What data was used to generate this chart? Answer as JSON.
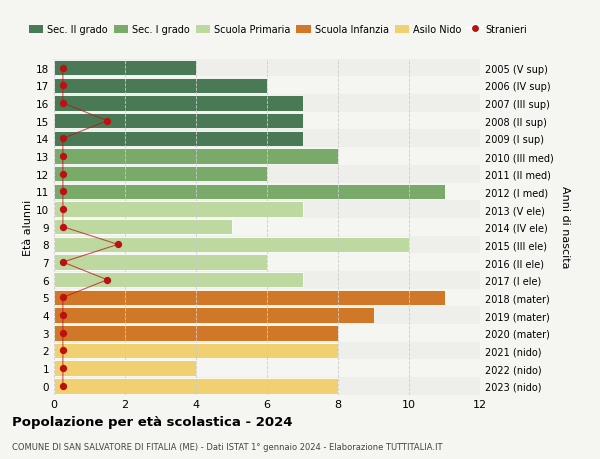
{
  "ages": [
    18,
    17,
    16,
    15,
    14,
    13,
    12,
    11,
    10,
    9,
    8,
    7,
    6,
    5,
    4,
    3,
    2,
    1,
    0
  ],
  "right_labels": [
    "2005 (V sup)",
    "2006 (IV sup)",
    "2007 (III sup)",
    "2008 (II sup)",
    "2009 (I sup)",
    "2010 (III med)",
    "2011 (II med)",
    "2012 (I med)",
    "2013 (V ele)",
    "2014 (IV ele)",
    "2015 (III ele)",
    "2016 (II ele)",
    "2017 (I ele)",
    "2018 (mater)",
    "2019 (mater)",
    "2020 (mater)",
    "2021 (nido)",
    "2022 (nido)",
    "2023 (nido)"
  ],
  "bar_values": [
    4,
    6,
    7,
    7,
    7,
    8,
    6,
    11,
    7,
    5,
    10,
    6,
    7,
    11,
    9,
    8,
    8,
    4,
    8
  ],
  "bar_colors": [
    "#4a7a55",
    "#4a7a55",
    "#4a7a55",
    "#4a7a55",
    "#4a7a55",
    "#7aaa6a",
    "#7aaa6a",
    "#7aaa6a",
    "#bdd9a0",
    "#bdd9a0",
    "#bdd9a0",
    "#bdd9a0",
    "#bdd9a0",
    "#d07828",
    "#d07828",
    "#d07828",
    "#f0d070",
    "#f0d070",
    "#f0d070"
  ],
  "stranieri_x": [
    0.25,
    0.25,
    0.25,
    1.5,
    0.25,
    0.25,
    0.25,
    0.25,
    0.25,
    0.25,
    1.8,
    0.25,
    1.5,
    0.25,
    0.25,
    0.25,
    0.25,
    0.25,
    0.25
  ],
  "ylabel_left": "Età alunni",
  "ylabel_right": "Anni di nascita",
  "title": "Popolazione per età scolastica - 2024",
  "subtitle": "COMUNE DI SAN SALVATORE DI FITALIA (ME) - Dati ISTAT 1° gennaio 2024 - Elaborazione TUTTITALIA.IT",
  "xlim": [
    0,
    12
  ],
  "xticks": [
    0,
    2,
    4,
    6,
    8,
    10,
    12
  ],
  "legend_labels": [
    "Sec. II grado",
    "Sec. I grado",
    "Scuola Primaria",
    "Scuola Infanzia",
    "Asilo Nido",
    "Stranieri"
  ],
  "legend_colors": [
    "#4a7a55",
    "#7aaa6a",
    "#bdd9a0",
    "#d07828",
    "#f0d070",
    "#bb1111"
  ],
  "bar_height": 0.88,
  "bg_color": "#f5f5f2",
  "row_alt_color": "#eeeeea",
  "grid_color": "#cccccc"
}
